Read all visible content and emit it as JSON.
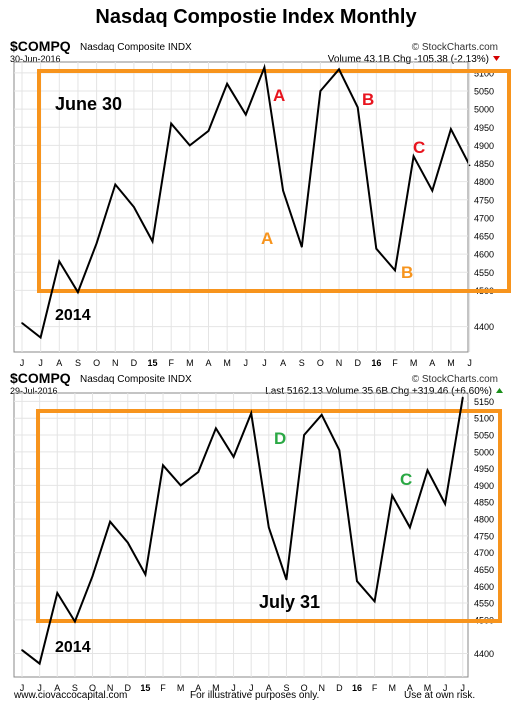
{
  "title": "Nasdaq Compostie Index Monthly",
  "footer": {
    "website": "www.ciovaccocapital.com",
    "disclaimer_center": "For illustrative purposes only.",
    "disclaimer_right": "Use at own risk."
  },
  "colors": {
    "highlight": "#f7941d",
    "label_red": "#e8141e",
    "label_orange": "#f7941d",
    "label_green": "#2aa844",
    "line": "#000000",
    "grid": "#e4e4e4"
  },
  "chart_data": [
    {
      "type": "line",
      "header": {
        "symbol": "$COMPQ",
        "name": "Nasdaq Composite INDX",
        "date": "30-Jun-2016",
        "source": "© StockCharts.com",
        "stats": "Volume 43.1B  Chg -105.38 (-2.13%)",
        "direction": "down"
      },
      "x_tick_labels": [
        "J",
        "J",
        "A",
        "S",
        "O",
        "N",
        "D",
        "15",
        "F",
        "M",
        "A",
        "M",
        "J",
        "J",
        "A",
        "S",
        "O",
        "N",
        "D",
        "16",
        "F",
        "M",
        "A",
        "M",
        "J"
      ],
      "y_tick_labels": [
        4400,
        4500,
        4550,
        4600,
        4650,
        4700,
        4750,
        4800,
        4850,
        4900,
        4950,
        5000,
        5050,
        5100
      ],
      "ylim": [
        4330,
        5130
      ],
      "series": [
        {
          "x": [
            0,
            1,
            2,
            3,
            4,
            5,
            6,
            7,
            8,
            9,
            10,
            11,
            12,
            13,
            14,
            15,
            16,
            17,
            18,
            19,
            20,
            21,
            22,
            23,
            24
          ],
          "y": [
            4410,
            4370,
            4580,
            4495,
            4630,
            4792,
            4730,
            4635,
            4960,
            4900,
            4940,
            5070,
            4985,
            5115,
            4775,
            4620,
            5050,
            5110,
            5005,
            4615,
            4555,
            4870,
            4775,
            4945,
            4845
          ]
        }
      ],
      "annotations": [
        "June 30",
        "2014",
        "A",
        "B",
        "C",
        "A",
        "B"
      ]
    },
    {
      "type": "line",
      "header": {
        "symbol": "$COMPQ",
        "name": "Nasdaq Composite INDX",
        "date": "29-Jul-2016",
        "source": "© StockCharts.com",
        "stats": "Last 5162.13  Volume 35.6B  Chg +319.46 (+6.60%)",
        "direction": "up"
      },
      "x_tick_labels": [
        "J",
        "J",
        "A",
        "S",
        "O",
        "N",
        "D",
        "15",
        "F",
        "M",
        "A",
        "M",
        "J",
        "J",
        "A",
        "S",
        "O",
        "N",
        "D",
        "16",
        "F",
        "M",
        "A",
        "M",
        "J",
        "J"
      ],
      "y_tick_labels": [
        4400,
        4500,
        4550,
        4600,
        4650,
        4700,
        4750,
        4800,
        4850,
        4900,
        4950,
        5000,
        5050,
        5100,
        5150
      ],
      "ylim": [
        4330,
        5175
      ],
      "series": [
        {
          "x": [
            0,
            1,
            2,
            3,
            4,
            5,
            6,
            7,
            8,
            9,
            10,
            11,
            12,
            13,
            14,
            15,
            16,
            17,
            18,
            19,
            20,
            21,
            22,
            23,
            24,
            25
          ],
          "y": [
            4410,
            4370,
            4580,
            4495,
            4630,
            4792,
            4730,
            4635,
            4960,
            4900,
            4940,
            5070,
            4985,
            5115,
            4775,
            4620,
            5050,
            5110,
            5005,
            4615,
            4555,
            4870,
            4775,
            4945,
            4845,
            5162
          ]
        }
      ],
      "annotations": [
        "July 31",
        "2014",
        "D",
        "C"
      ]
    }
  ]
}
